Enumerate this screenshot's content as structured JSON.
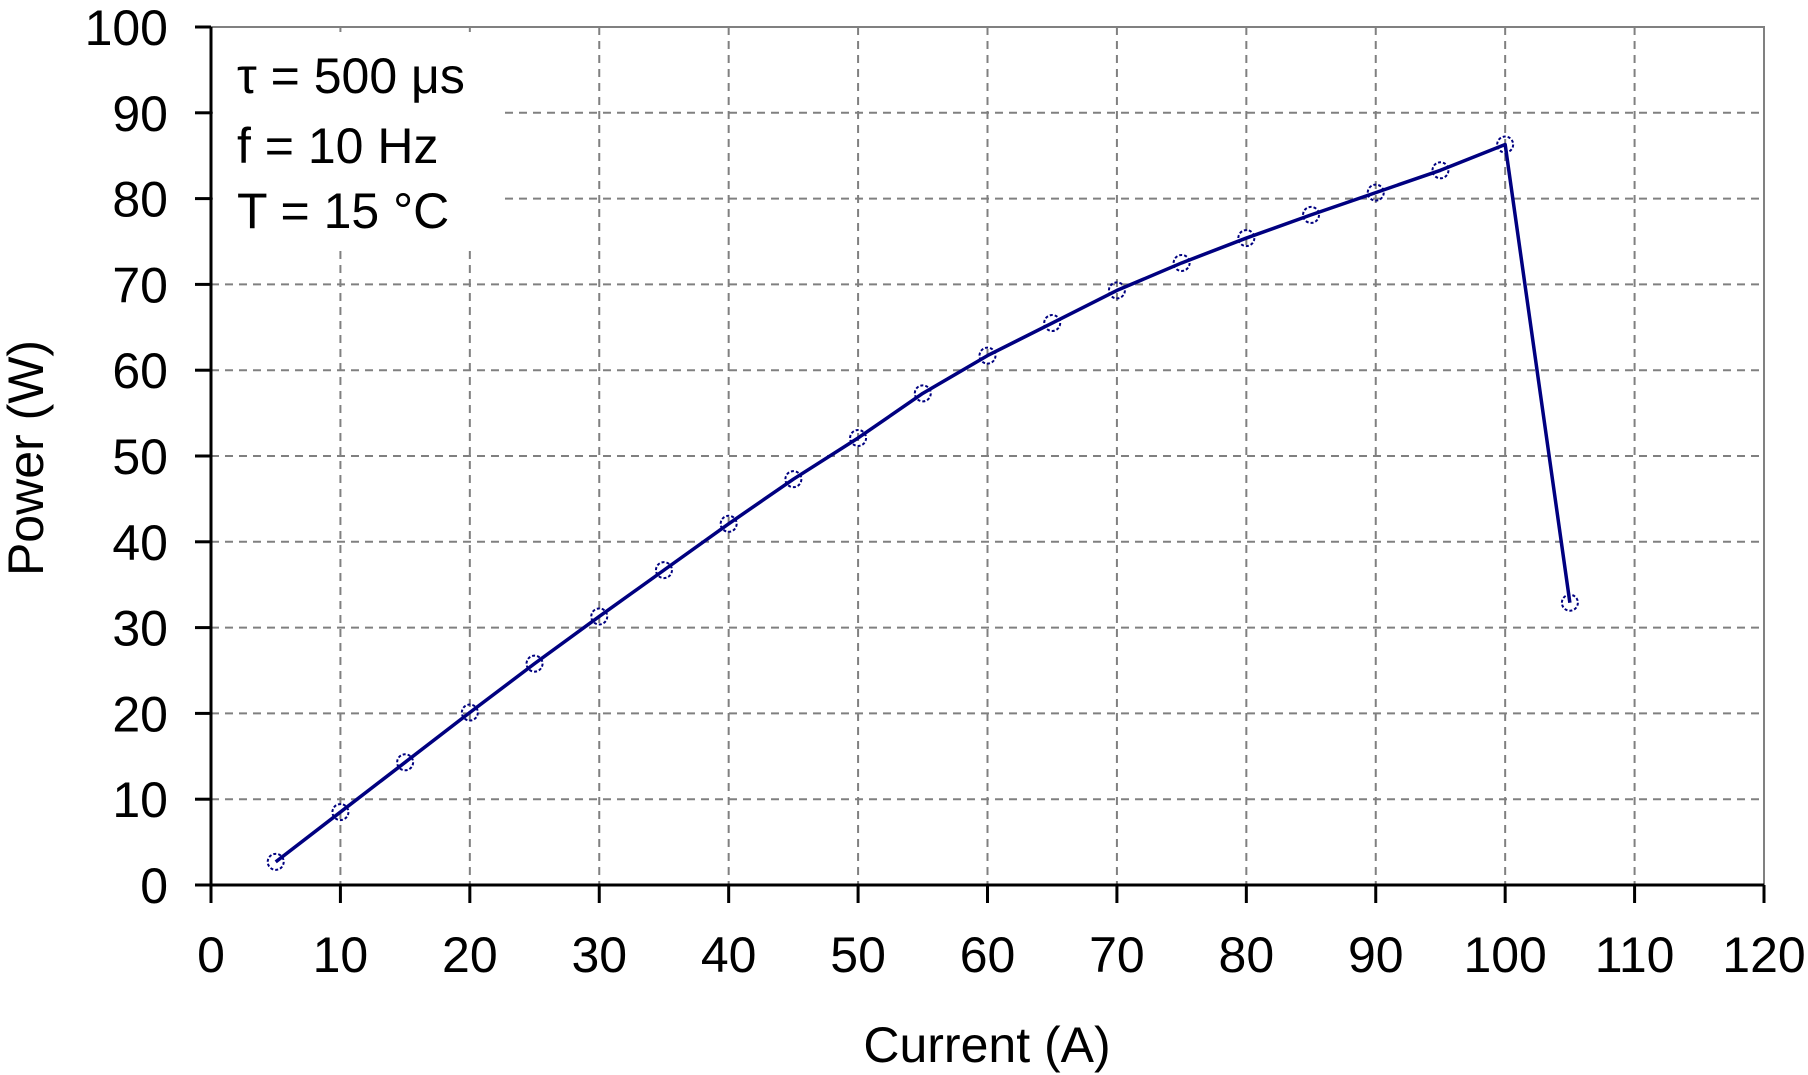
{
  "chart_data": {
    "type": "line",
    "title": "",
    "xlabel": "Current (A)",
    "ylabel": "Power (W)",
    "xlim": [
      0,
      120
    ],
    "ylim": [
      0,
      100
    ],
    "xticks": [
      0,
      10,
      20,
      30,
      40,
      50,
      60,
      70,
      80,
      90,
      100,
      110,
      120
    ],
    "yticks": [
      0,
      10,
      20,
      30,
      40,
      50,
      60,
      70,
      80,
      90,
      100
    ],
    "grid": true,
    "legend": null,
    "annotations": [
      "τ = 500 μs",
      "f = 10 Hz",
      "T = 15 °C"
    ],
    "series": [
      {
        "name": "Power",
        "color": "#000080",
        "marker": "open-circle",
        "x": [
          5,
          10,
          15,
          20,
          25,
          30,
          35,
          40,
          45,
          50,
          55,
          60,
          65,
          70,
          75,
          80,
          85,
          90,
          95,
          100,
          105
        ],
        "values": [
          2.7,
          8.5,
          14.3,
          20.1,
          25.8,
          31.3,
          36.7,
          42.1,
          47.3,
          52.1,
          57.3,
          61.7,
          65.5,
          69.3,
          72.5,
          75.4,
          78.1,
          80.7,
          83.3,
          86.3,
          32.9
        ]
      }
    ]
  },
  "labels": {
    "xlabel": "Current (A)",
    "ylabel": "Power (W)",
    "annotation_line1": "τ = 500 μs",
    "annotation_line2": "f = 10 Hz",
    "annotation_line3": "T = 15 °C"
  },
  "colors": {
    "series": "#000080",
    "grid": "#808080",
    "axis": "#000000",
    "plot_border": "#808080"
  }
}
